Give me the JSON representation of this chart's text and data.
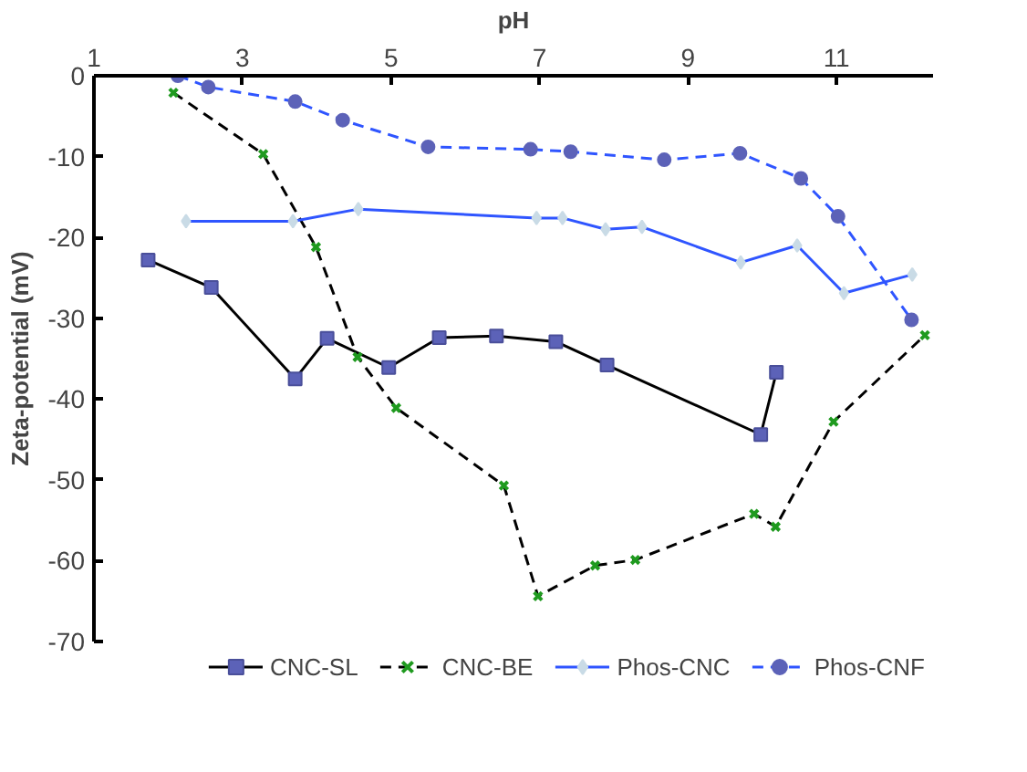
{
  "chart_data": {
    "type": "line",
    "xlabel": "pH",
    "ylabel": "Zeta-potential (mV)",
    "xlim": [
      1,
      12.3
    ],
    "ylim": [
      -70,
      0
    ],
    "xticks": [
      1,
      3,
      5,
      7,
      9,
      11
    ],
    "yticks": [
      0,
      -10,
      -20,
      -30,
      -40,
      -50,
      -60,
      -70
    ],
    "grid": false,
    "legend": "bottom",
    "series": [
      {
        "name": "CNC-SL",
        "color": "#000000",
        "marker": "square",
        "line_style": "solid",
        "x": [
          1.73,
          2.58,
          3.71,
          4.14,
          4.97,
          5.65,
          6.42,
          7.22,
          7.91,
          9.98,
          10.19
        ],
        "values": [
          -22.8,
          -26.2,
          -37.5,
          -32.5,
          -36.1,
          -32.4,
          -32.2,
          -32.9,
          -35.8,
          -44.4,
          -36.7
        ]
      },
      {
        "name": "CNC-BE",
        "color": "#000000",
        "marker": "cross",
        "line_style": "dashed",
        "x": [
          2.07,
          3.28,
          3.99,
          4.55,
          5.07,
          6.52,
          6.98,
          7.75,
          8.29,
          9.89,
          10.18,
          10.96,
          12.19
        ],
        "values": [
          -2.1,
          -9.7,
          -21.2,
          -34.8,
          -41.1,
          -50.7,
          -64.4,
          -60.6,
          -59.9,
          -54.2,
          -55.8,
          -42.8,
          -32.1
        ]
      },
      {
        "name": "Phos-CNC",
        "color": "#2f55ff",
        "marker": "diamond",
        "line_style": "solid",
        "x": [
          2.24,
          3.68,
          4.56,
          6.96,
          7.31,
          7.89,
          8.38,
          9.71,
          10.47,
          11.1,
          12.02
        ],
        "values": [
          -18.0,
          -18.0,
          -16.5,
          -17.6,
          -17.6,
          -19.0,
          -18.7,
          -23.1,
          -21.0,
          -26.9,
          -24.6
        ]
      },
      {
        "name": "Phos-CNF",
        "color": "#2f55ff",
        "marker": "circle",
        "line_style": "dashed",
        "x": [
          2.13,
          2.54,
          3.71,
          4.35,
          5.5,
          6.88,
          7.42,
          8.68,
          9.7,
          10.52,
          11.02,
          12.01
        ],
        "values": [
          0,
          -1.4,
          -3.2,
          -5.5,
          -8.8,
          -9.1,
          -9.4,
          -10.4,
          -9.6,
          -12.7,
          -17.4,
          -30.2
        ]
      }
    ]
  }
}
